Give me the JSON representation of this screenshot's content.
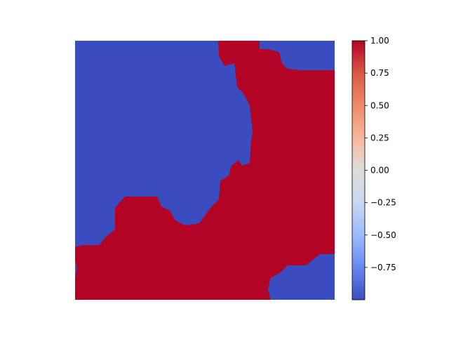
{
  "chart_data": {
    "type": "heatmap",
    "title": "",
    "xlabel": "",
    "ylabel": "",
    "axes_visible": false,
    "grid": false,
    "colormap": "coolwarm",
    "colors": {
      "low": "#3b4cc0",
      "high": "#b40426",
      "cmap_stops": [
        "#3b4cc0",
        "#6788ee",
        "#9abbff",
        "#c9d7f0",
        "#dddddd",
        "#f7b89c",
        "#f08a6c",
        "#d95847",
        "#b40426"
      ]
    },
    "values_set": [
      -1,
      1
    ],
    "grid_shape": [
      92,
      92
    ],
    "regions": [
      {
        "value": -1,
        "label": "blue region, upper-left lobe"
      },
      {
        "value": 1,
        "label": "red region, diagonal band and right side"
      },
      {
        "value": -1,
        "label": "blue patch, upper-right corner"
      },
      {
        "value": -1,
        "label": "blue patch, lower-right corner"
      }
    ],
    "colorbar": {
      "vmin": -1.0,
      "vmax": 1.0,
      "ticks": [
        1.0,
        0.75,
        0.5,
        0.25,
        0.0,
        -0.25,
        -0.5,
        -0.75
      ],
      "tick_labels": [
        "1.00",
        "0.75",
        "0.50",
        "0.25",
        "0.00",
        "−0.25",
        "−0.50",
        "−0.75"
      ]
    }
  }
}
